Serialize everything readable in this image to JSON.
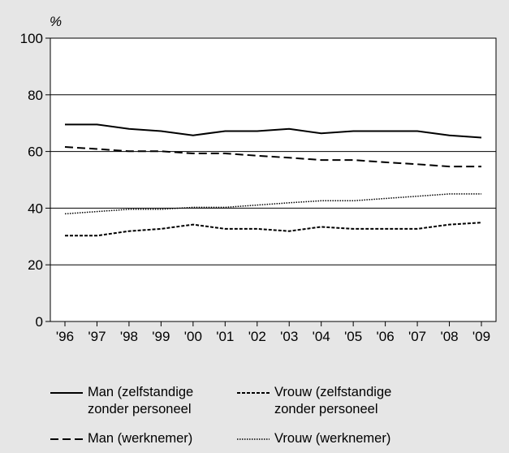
{
  "chart_data": {
    "type": "line",
    "ylabel": "%",
    "xlabel": "",
    "ylim": [
      0,
      100
    ],
    "yticks": [
      0,
      20,
      40,
      60,
      80,
      100
    ],
    "grid": true,
    "categories": [
      "'96",
      "'97",
      "'98",
      "'99",
      "'00",
      "'01",
      "'02",
      "'03",
      "'04",
      "'05",
      "'06",
      "'07",
      "'08",
      "'09"
    ],
    "series": [
      {
        "name": "Man (zelfstandige\nzonder personeel",
        "style": "solid",
        "values": [
          69.5,
          69.5,
          68,
          67.2,
          65.7,
          67.2,
          67.2,
          68,
          66.4,
          67.2,
          67.2,
          67.2,
          65.7,
          64.9
        ]
      },
      {
        "name": "Vrouw (zelfstandige\nzonder personeel",
        "style": "short-dash",
        "values": [
          30.3,
          30.3,
          31.9,
          32.7,
          34.2,
          32.7,
          32.7,
          31.9,
          33.4,
          32.7,
          32.7,
          32.7,
          34.2,
          34.9
        ]
      },
      {
        "name": "Man (werknemer)",
        "style": "long-dash",
        "values": [
          61.6,
          60.9,
          60.1,
          60.1,
          59.3,
          59.3,
          58.5,
          57.8,
          57.0,
          57.0,
          56.2,
          55.5,
          54.7,
          54.7
        ]
      },
      {
        "name": "Vrouw (werknemer)",
        "style": "dotted",
        "values": [
          38.0,
          38.8,
          39.6,
          39.6,
          40.3,
          40.3,
          41.1,
          41.9,
          42.6,
          42.6,
          43.4,
          44.2,
          45.0,
          45.0
        ]
      }
    ],
    "legend": "bottom",
    "colors": {
      "background": "#e6e6e6",
      "plot": "#ffffff",
      "line": "#000000"
    }
  }
}
